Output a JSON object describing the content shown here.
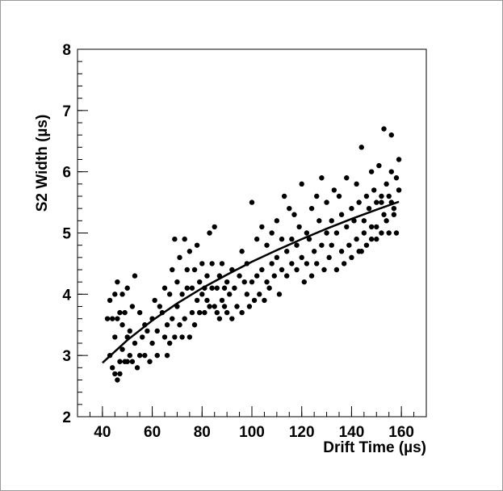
{
  "chart_data": {
    "type": "scatter",
    "xlabel": "Drift Time (µs)",
    "ylabel": "S2 Width (µs)",
    "xlim": [
      30,
      170
    ],
    "ylim": [
      2,
      8
    ],
    "x_ticks": [
      40,
      60,
      80,
      100,
      120,
      140,
      160
    ],
    "y_ticks": [
      2,
      3,
      4,
      5,
      6,
      7,
      8
    ],
    "grid": false,
    "colors": {
      "points": "#000000",
      "fit": "#000000",
      "frame": "#000000"
    },
    "fit_curve": {
      "x": [
        40,
        50,
        60,
        70,
        80,
        90,
        100,
        110,
        120,
        130,
        140,
        150,
        159
      ],
      "y": [
        2.88,
        3.25,
        3.57,
        3.85,
        4.1,
        4.32,
        4.53,
        4.72,
        4.9,
        5.07,
        5.23,
        5.38,
        5.51
      ]
    },
    "series": [
      {
        "x": [
          42,
          43,
          43,
          44,
          44,
          45,
          45,
          45,
          46,
          46,
          46,
          47,
          47,
          47,
          48,
          48,
          48,
          49,
          49,
          50,
          50,
          50,
          51,
          51,
          52,
          52,
          53,
          53,
          54,
          55,
          55,
          56,
          57,
          57,
          58,
          59,
          60,
          60,
          61,
          62,
          62,
          63,
          64,
          65,
          65,
          66,
          66,
          67,
          67,
          68,
          68,
          69,
          69,
          70,
          70,
          71,
          71,
          72,
          72,
          73,
          73,
          74,
          74,
          75,
          75,
          76,
          76,
          77,
          77,
          78,
          78,
          79,
          79,
          80,
          80,
          81,
          81,
          82,
          82,
          83,
          83,
          84,
          84,
          85,
          85,
          86,
          86,
          87,
          87,
          88,
          88,
          89,
          89,
          90,
          90,
          91,
          92,
          92,
          93,
          94,
          95,
          96,
          96,
          97,
          98,
          98,
          99,
          100,
          100,
          101,
          102,
          102,
          103,
          104,
          104,
          105,
          106,
          106,
          107,
          108,
          108,
          109,
          110,
          110,
          111,
          112,
          112,
          113,
          114,
          114,
          115,
          116,
          116,
          117,
          118,
          118,
          119,
          120,
          120,
          121,
          122,
          122,
          123,
          124,
          124,
          125,
          126,
          126,
          127,
          128,
          128,
          129,
          130,
          130,
          131,
          132,
          132,
          133,
          134,
          134,
          135,
          136,
          136,
          137,
          138,
          138,
          139,
          140,
          140,
          141,
          142,
          142,
          143,
          144,
          144,
          145,
          146,
          146,
          147,
          148,
          148,
          149,
          150,
          150,
          151,
          152,
          152,
          153,
          154,
          154,
          155,
          156,
          156,
          157,
          158,
          158,
          159,
          159,
          143,
          150,
          153,
          155,
          156,
          157,
          159,
          152,
          148,
          145
        ],
        "y": [
          3.6,
          3.0,
          3.9,
          2.8,
          3.6,
          2.7,
          3.3,
          4.0,
          2.6,
          3.6,
          4.2,
          2.7,
          2.9,
          3.7,
          3.1,
          3.5,
          4.0,
          2.9,
          3.7,
          2.9,
          3.3,
          4.1,
          3.0,
          3.4,
          2.9,
          3.8,
          3.2,
          4.3,
          2.8,
          3.0,
          3.7,
          3.3,
          3.0,
          3.5,
          3.4,
          2.9,
          3.2,
          3.6,
          3.9,
          3.0,
          3.4,
          3.8,
          3.7,
          3.3,
          4.1,
          3.0,
          3.5,
          3.2,
          4.0,
          3.6,
          4.4,
          3.3,
          4.9,
          3.8,
          4.2,
          3.5,
          4.6,
          3.3,
          4.0,
          3.6,
          4.9,
          4.1,
          4.4,
          3.3,
          4.7,
          3.7,
          4.1,
          3.5,
          4.4,
          3.9,
          4.8,
          3.7,
          4.2,
          4.0,
          4.5,
          3.7,
          4.1,
          3.9,
          4.3,
          3.8,
          5.0,
          4.1,
          4.5,
          3.8,
          5.1,
          3.7,
          4.1,
          3.6,
          4.3,
          3.9,
          4.5,
          3.8,
          4.1,
          3.7,
          4.2,
          4.0,
          3.6,
          4.4,
          4.1,
          3.8,
          4.3,
          4.7,
          3.7,
          4.2,
          4.0,
          4.5,
          3.8,
          4.2,
          5.5,
          3.9,
          4.3,
          4.9,
          4.0,
          4.4,
          5.1,
          3.9,
          4.2,
          4.8,
          4.1,
          4.5,
          5.0,
          4.3,
          4.6,
          5.2,
          4.0,
          4.4,
          4.9,
          5.6,
          4.3,
          4.7,
          5.4,
          4.5,
          4.9,
          5.3,
          4.4,
          4.8,
          5.1,
          4.6,
          5.8,
          4.2,
          5.0,
          4.5,
          4.9,
          5.4,
          4.3,
          4.7,
          5.6,
          4.5,
          5.2,
          4.8,
          5.9,
          4.4,
          5.0,
          5.5,
          4.6,
          5.2,
          4.8,
          5.7,
          4.4,
          5.0,
          5.6,
          4.7,
          5.3,
          4.5,
          5.1,
          5.9,
          4.8,
          5.4,
          4.6,
          5.2,
          5.8,
          4.9,
          5.5,
          4.7,
          6.4,
          5.0,
          5.6,
          4.8,
          5.4,
          6.0,
          5.1,
          5.7,
          4.9,
          5.5,
          6.1,
          5.0,
          5.6,
          6.7,
          5.2,
          5.8,
          5.0,
          5.5,
          6.6,
          5.3,
          5.9,
          5.0,
          6.2,
          5.7,
          4.7,
          5.1,
          5.3,
          5.6,
          6.0,
          5.4,
          5.7,
          5.5,
          4.9,
          5.2
        ]
      }
    ]
  }
}
